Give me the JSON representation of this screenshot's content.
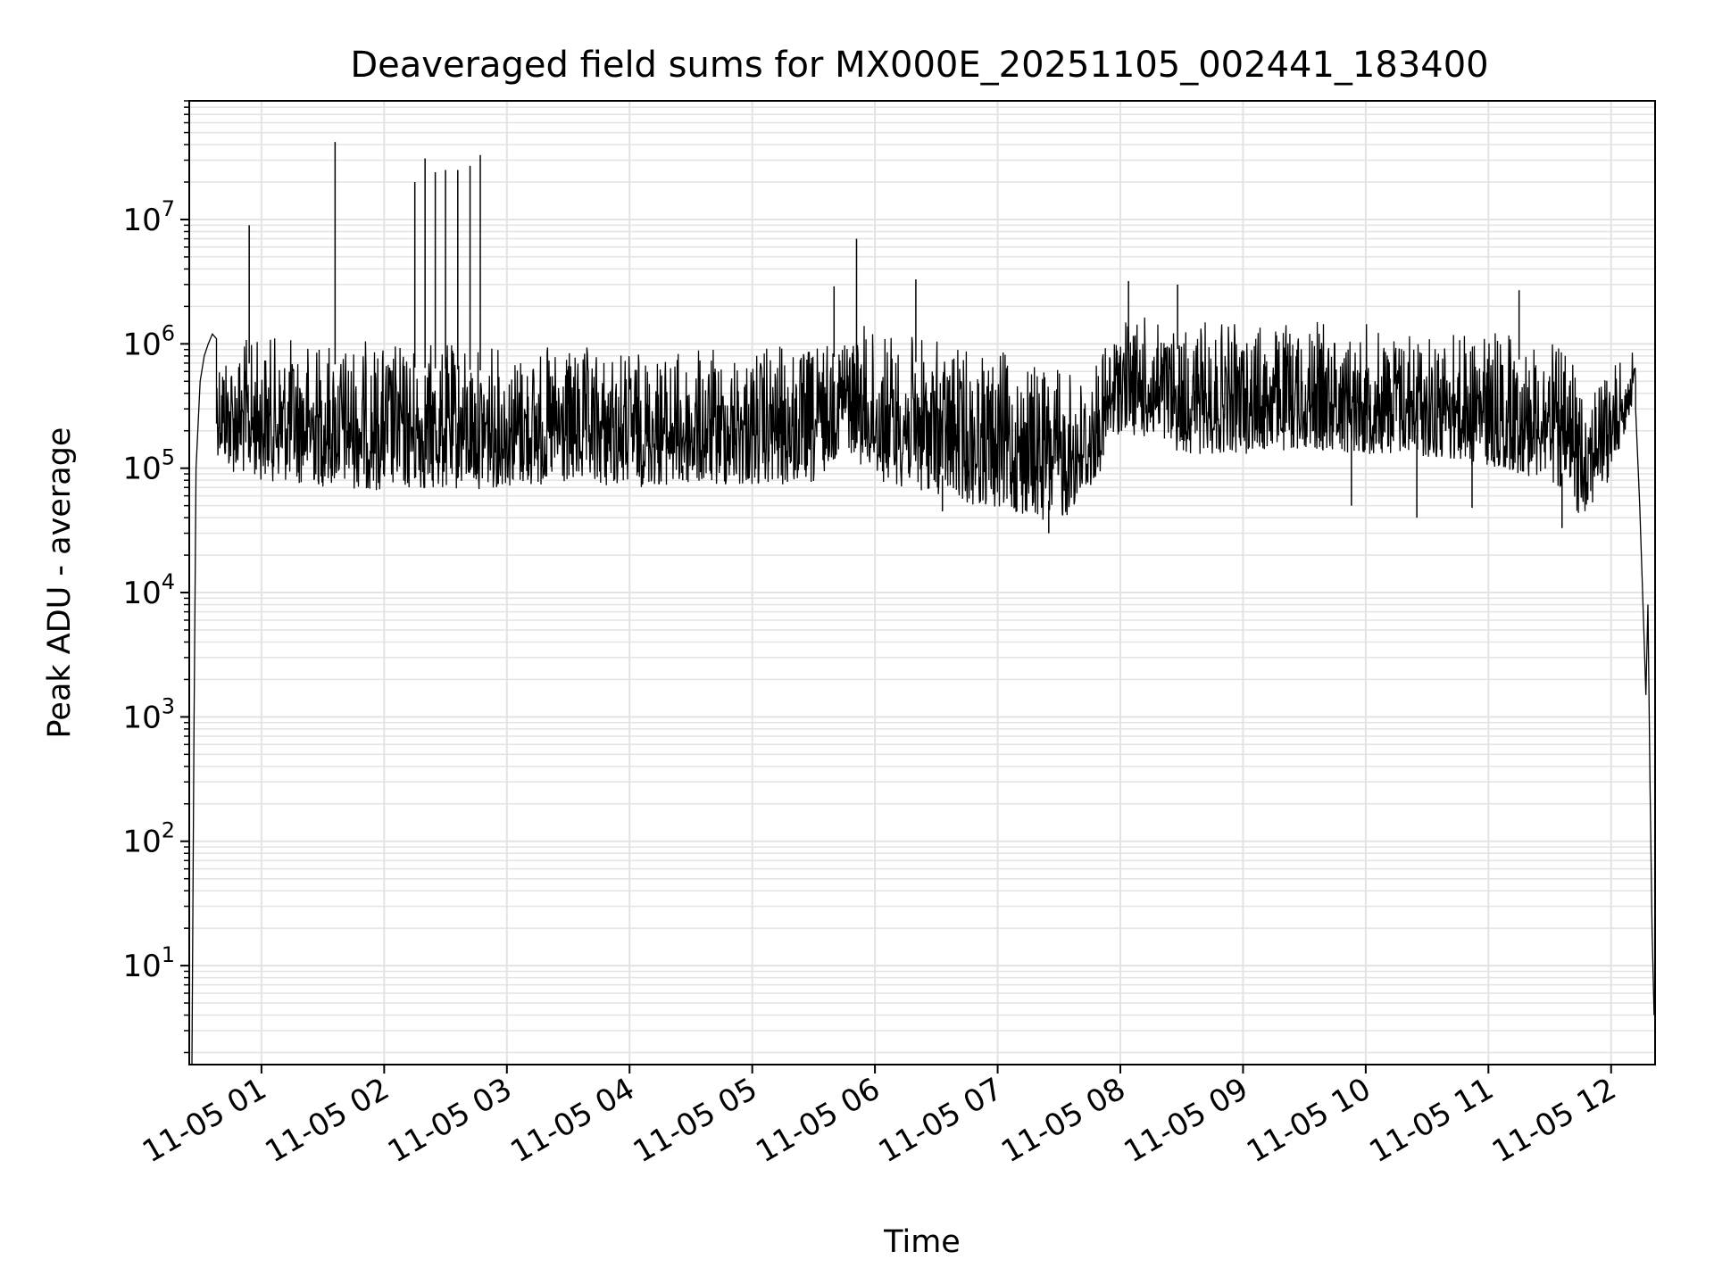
{
  "chart_data": {
    "type": "line",
    "title": "Deaveraged field sums for MX000E_20251105_002441_183400",
    "xlabel": "Time",
    "ylabel": "Peak ADU - average",
    "yscale": "log",
    "ylim": [
      1.6,
      90000000
    ],
    "xlim": [
      "2025-11-05 00:24:41",
      "2025-11-05 12:21:30"
    ],
    "grid": true,
    "x_ticks": [
      "11-05 01",
      "11-05 02",
      "11-05 03",
      "11-05 04",
      "11-05 05",
      "11-05 06",
      "11-05 07",
      "11-05 08",
      "11-05 09",
      "11-05 10",
      "11-05 11",
      "11-05 12"
    ],
    "y_ticks": [
      {
        "base": "10",
        "exp": "1",
        "value": 10
      },
      {
        "base": "10",
        "exp": "2",
        "value": 100
      },
      {
        "base": "10",
        "exp": "3",
        "value": 1000
      },
      {
        "base": "10",
        "exp": "4",
        "value": 10000
      },
      {
        "base": "10",
        "exp": "5",
        "value": 100000
      },
      {
        "base": "10",
        "exp": "6",
        "value": 1000000
      },
      {
        "base": "10",
        "exp": "7",
        "value": 10000000
      }
    ],
    "series": [
      {
        "color": "#000000",
        "envelope": {
          "x": [
            "2025-11-05 00:30",
            "2025-11-05 00:45",
            "2025-11-05 01:00",
            "2025-11-05 01:30",
            "2025-11-05 02:00",
            "2025-11-05 02:30",
            "2025-11-05 03:00",
            "2025-11-05 03:30",
            "2025-11-05 04:00",
            "2025-11-05 04:30",
            "2025-11-05 05:00",
            "2025-11-05 05:30",
            "2025-11-05 05:45",
            "2025-11-05 06:00",
            "2025-11-05 06:30",
            "2025-11-05 07:00",
            "2025-11-05 07:30",
            "2025-11-05 07:45",
            "2025-11-05 08:00",
            "2025-11-05 08:30",
            "2025-11-05 09:00",
            "2025-11-05 09:30",
            "2025-11-05 10:00",
            "2025-11-05 10:30",
            "2025-11-05 11:00",
            "2025-11-05 11:30",
            "2025-11-05 11:45",
            "2025-11-05 12:00",
            "2025-11-05 12:10"
          ],
          "low": [
            200000,
            90000,
            80000,
            70000,
            65000,
            65000,
            70000,
            70000,
            70000,
            70000,
            70000,
            70000,
            150000,
            80000,
            60000,
            45000,
            35000,
            60000,
            200000,
            130000,
            130000,
            140000,
            130000,
            120000,
            100000,
            80000,
            40000,
            80000,
            300000
          ],
          "high": [
            1200000,
            1100000,
            1200000,
            1150000,
            1100000,
            1050000,
            1000000,
            950000,
            950000,
            900000,
            1000000,
            1000000,
            1500000,
            1400000,
            1100000,
            900000,
            700000,
            600000,
            1800000,
            1500000,
            1500000,
            1600000,
            1500000,
            1400000,
            1300000,
            1200000,
            600000,
            700000,
            900000
          ]
        },
        "onset": {
          "x": [
            "2025-11-05 00:26",
            "2025-11-05 00:27",
            "2025-11-05 00:28",
            "2025-11-05 00:30",
            "2025-11-05 00:32",
            "2025-11-05 00:34",
            "2025-11-05 00:36",
            "2025-11-05 00:38"
          ],
          "y": [
            1.5,
            800,
            100000,
            500000,
            800000,
            1000000,
            1200000,
            1100000
          ]
        },
        "tail": {
          "x": [
            "2025-11-05 12:12",
            "2025-11-05 12:14",
            "2025-11-05 12:16",
            "2025-11-05 12:17",
            "2025-11-05 12:18",
            "2025-11-05 12:19",
            "2025-11-05 12:20",
            "2025-11-05 12:21"
          ],
          "y": [
            300000,
            50000,
            5000,
            1500,
            8000,
            300,
            20,
            4
          ]
        },
        "spikes": [
          {
            "x": "2025-11-05 00:54",
            "y": 9000000
          },
          {
            "x": "2025-11-05 01:36",
            "y": 42000000
          },
          {
            "x": "2025-11-05 02:15",
            "y": 20000000
          },
          {
            "x": "2025-11-05 02:20",
            "y": 31000000
          },
          {
            "x": "2025-11-05 02:25",
            "y": 24000000
          },
          {
            "x": "2025-11-05 02:30",
            "y": 25000000
          },
          {
            "x": "2025-11-05 02:36",
            "y": 25000000
          },
          {
            "x": "2025-11-05 02:42",
            "y": 27000000
          },
          {
            "x": "2025-11-05 02:47",
            "y": 33000000
          },
          {
            "x": "2025-11-05 05:51",
            "y": 7000000
          },
          {
            "x": "2025-11-05 05:40",
            "y": 2900000
          },
          {
            "x": "2025-11-05 06:20",
            "y": 3300000
          },
          {
            "x": "2025-11-05 08:04",
            "y": 3200000
          },
          {
            "x": "2025-11-05 08:28",
            "y": 3000000
          },
          {
            "x": "2025-11-05 11:15",
            "y": 2700000
          }
        ],
        "dips": [
          {
            "x": "2025-11-05 04:26",
            "y": 80000
          },
          {
            "x": "2025-11-05 06:33",
            "y": 45000
          },
          {
            "x": "2025-11-05 07:25",
            "y": 30000
          },
          {
            "x": "2025-11-05 09:53",
            "y": 50000
          },
          {
            "x": "2025-11-05 10:25",
            "y": 40000
          },
          {
            "x": "2025-11-05 10:52",
            "y": 48000
          },
          {
            "x": "2025-11-05 11:36",
            "y": 33000
          }
        ]
      }
    ]
  }
}
